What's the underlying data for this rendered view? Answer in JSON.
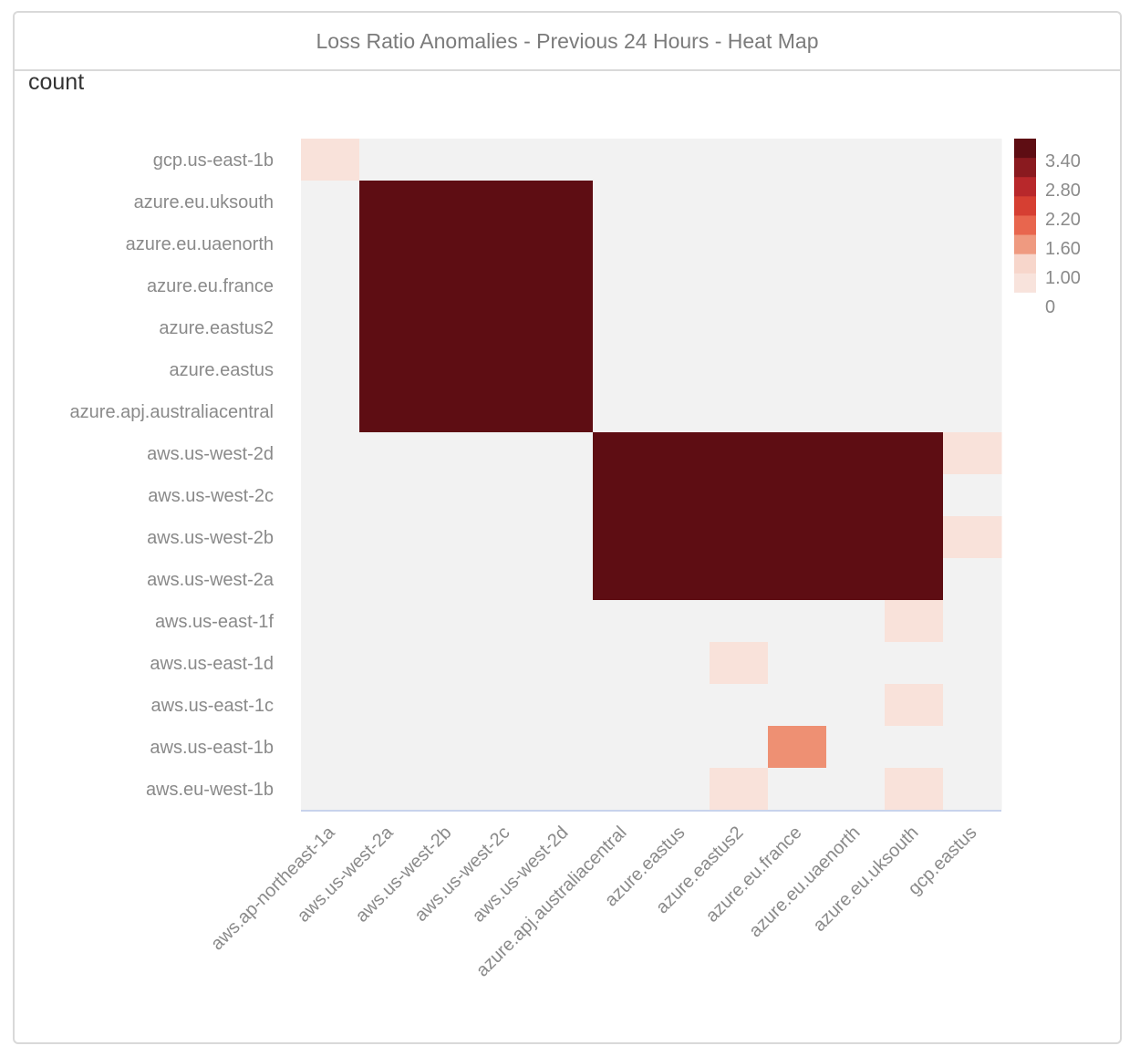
{
  "chart_data": {
    "type": "heatmap",
    "title": "Loss Ratio Anomalies - Previous 24 Hours - Heat Map",
    "metric": "count",
    "x_categories": [
      "aws.ap-northeast-1a",
      "aws.us-west-2a",
      "aws.us-west-2b",
      "aws.us-west-2c",
      "aws.us-west-2d",
      "azure.apj.australiacentral",
      "azure.eastus",
      "azure.eastus2",
      "azure.eu.france",
      "azure.eu.uaenorth",
      "azure.eu.uksouth",
      "gcp.eastus"
    ],
    "y_categories": [
      "gcp.us-east-1b",
      "azure.eu.uksouth",
      "azure.eu.uaenorth",
      "azure.eu.france",
      "azure.eastus2",
      "azure.eastus",
      "azure.apj.australiacentral",
      "aws.us-west-2d",
      "aws.us-west-2c",
      "aws.us-west-2b",
      "aws.us-west-2a",
      "aws.us-east-1f",
      "aws.us-east-1d",
      "aws.us-east-1c",
      "aws.us-east-1b",
      "aws.eu-west-1b"
    ],
    "values": [
      [
        1,
        0,
        0,
        0,
        0,
        0,
        0,
        0,
        0,
        0,
        0,
        0
      ],
      [
        0,
        4,
        4,
        4,
        4,
        0,
        0,
        0,
        0,
        0,
        0,
        0
      ],
      [
        0,
        4,
        4,
        4,
        4,
        0,
        0,
        0,
        0,
        0,
        0,
        0
      ],
      [
        0,
        4,
        4,
        4,
        4,
        0,
        0,
        0,
        0,
        0,
        0,
        0
      ],
      [
        0,
        4,
        4,
        4,
        4,
        0,
        0,
        0,
        0,
        0,
        0,
        0
      ],
      [
        0,
        4,
        4,
        4,
        4,
        0,
        0,
        0,
        0,
        0,
        0,
        0
      ],
      [
        0,
        4,
        4,
        4,
        4,
        0,
        0,
        0,
        0,
        0,
        0,
        0
      ],
      [
        0,
        0,
        0,
        0,
        0,
        4,
        4,
        4,
        4,
        4,
        4,
        1
      ],
      [
        0,
        0,
        0,
        0,
        0,
        4,
        4,
        4,
        4,
        4,
        4,
        0
      ],
      [
        0,
        0,
        0,
        0,
        0,
        4,
        4,
        4,
        4,
        4,
        4,
        1
      ],
      [
        0,
        0,
        0,
        0,
        0,
        4,
        4,
        4,
        4,
        4,
        4,
        0
      ],
      [
        0,
        0,
        0,
        0,
        0,
        0,
        0,
        0,
        0,
        0,
        1,
        0
      ],
      [
        0,
        0,
        0,
        0,
        0,
        0,
        0,
        1,
        0,
        0,
        0,
        0
      ],
      [
        0,
        0,
        0,
        0,
        0,
        0,
        0,
        0,
        0,
        0,
        1,
        0
      ],
      [
        0,
        0,
        0,
        0,
        0,
        0,
        0,
        0,
        2,
        0,
        0,
        0
      ],
      [
        0,
        0,
        0,
        0,
        0,
        0,
        0,
        1,
        0,
        0,
        1,
        0
      ]
    ],
    "legend": {
      "labels": [
        "3.40",
        "2.80",
        "2.20",
        "1.60",
        "1.00",
        "0"
      ],
      "colors": [
        "#5e0d13",
        "#8a1a1f",
        "#b8282b",
        "#d63f32",
        "#e8664e",
        "#ef9a80",
        "#f7d6cb",
        "#f8e3dc",
        "#ffffff"
      ]
    },
    "colors": {
      "empty": "#f2f2f2",
      "low": "#f9e2da",
      "mid": "#ee9073",
      "high": "#5e0d13",
      "axis_line": "#c8d3ec"
    }
  }
}
